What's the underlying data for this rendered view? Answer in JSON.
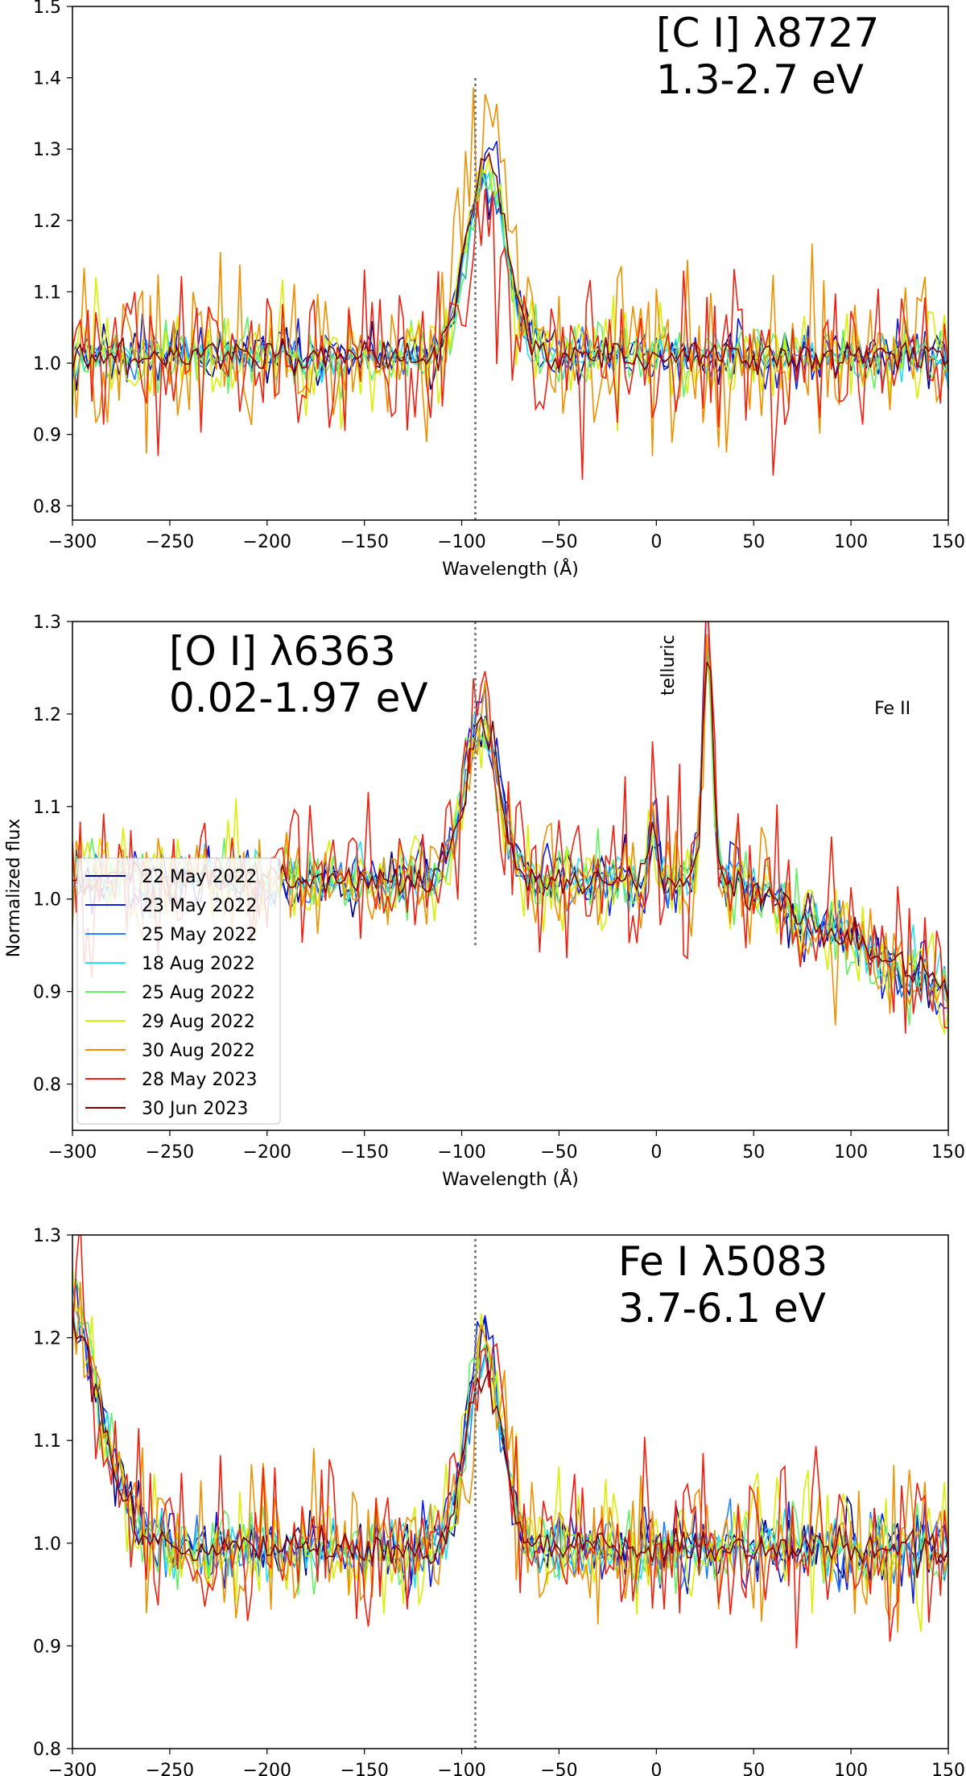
{
  "figure": {
    "shared_ylabel": "Normalized flux"
  },
  "legend": [
    {
      "label": "22 May 2022",
      "color": "#00008b"
    },
    {
      "label": "23 May 2022",
      "color": "#1020e0"
    },
    {
      "label": "25 May 2022",
      "color": "#2080ff"
    },
    {
      "label": "18 Aug 2022",
      "color": "#20e0f0"
    },
    {
      "label": "25 Aug 2022",
      "color": "#60f060"
    },
    {
      "label": "29 Aug 2022",
      "color": "#d8f000"
    },
    {
      "label": "30 Aug 2022",
      "color": "#f09000"
    },
    {
      "label": "28 May 2023",
      "color": "#f02010"
    },
    {
      "label": "30 Jun 2023",
      "color": "#800000"
    }
  ],
  "chart_data": [
    {
      "type": "line",
      "title_line1": "[C I] λ8727",
      "title_line2": "1.3-2.7 eV",
      "xlabel": "Wavelength (Å)",
      "xlim": [
        -300,
        150
      ],
      "ylim": [
        0.78,
        1.5
      ],
      "xticks": [
        -300,
        -250,
        -200,
        -150,
        -100,
        -50,
        0,
        50,
        100,
        150
      ],
      "yticks": [
        0.8,
        0.9,
        1.0,
        1.1,
        1.2,
        1.3,
        1.4,
        1.5
      ],
      "ytick_labels": [
        "0.8",
        "0.9",
        "1.0",
        "1.1",
        "1.2",
        "1.3",
        "1.4",
        "1.5"
      ],
      "vline": {
        "x": -93,
        "y_range": [
          0.78,
          1.4
        ]
      },
      "profile": {
        "baseline": 1.01,
        "features": [
          {
            "center": -88,
            "width": 10,
            "amp": 0.26
          }
        ],
        "slope_ref": 0,
        "slope": 0
      },
      "series_noise": [
        0.02,
        0.02,
        0.015,
        0.015,
        0.025,
        0.035,
        0.055,
        0.055,
        0.012
      ],
      "series_amp_scale": [
        1.0,
        1.05,
        0.95,
        0.95,
        1.0,
        1.05,
        1.3,
        0.7,
        1.05
      ],
      "annotations": []
    },
    {
      "type": "line",
      "title_line1": "[O I] λ6363",
      "title_line2": "0.02-1.97 eV",
      "xlabel": "Wavelength (Å)",
      "xlim": [
        -300,
        150
      ],
      "ylim": [
        0.75,
        1.3
      ],
      "xticks": [
        -300,
        -250,
        -200,
        -150,
        -100,
        -50,
        0,
        50,
        100,
        150
      ],
      "yticks": [
        0.8,
        0.9,
        1.0,
        1.1,
        1.2,
        1.3
      ],
      "ytick_labels": [
        "0.8",
        "0.9",
        "1.0",
        "1.1",
        "1.2",
        "1.3"
      ],
      "vline": {
        "x": -93,
        "y_range": [
          0.95,
          1.3
        ]
      },
      "profile": {
        "baseline": 1.02,
        "features": [
          {
            "center": -88,
            "width": 9,
            "amp": 0.17
          },
          {
            "center": 28,
            "width": 2.5,
            "amp": 0.26
          },
          {
            "center": 0,
            "width": 2,
            "amp": 0.06
          }
        ],
        "slope_ref": 40,
        "slope": -0.0011
      },
      "series_noise": [
        0.015,
        0.02,
        0.015,
        0.015,
        0.02,
        0.025,
        0.03,
        0.045,
        0.01
      ],
      "series_amp_scale": [
        1.0,
        1.1,
        1.0,
        1.0,
        1.0,
        1.0,
        1.0,
        1.1,
        1.0
      ],
      "annotations": [
        {
          "text": "telluric",
          "x": 9,
          "y": 1.22,
          "rotate": -90
        },
        {
          "text": "Fe II",
          "x": 112,
          "y": 1.2,
          "rotate": 0
        }
      ]
    },
    {
      "type": "line",
      "title_line1": "Fe I λ5083",
      "title_line2": "3.7-6.1 eV",
      "xlabel": "",
      "xlim": [
        -300,
        150
      ],
      "ylim": [
        0.8,
        1.3
      ],
      "xticks": [
        -300,
        -250,
        -200,
        -150,
        -100,
        -50,
        0,
        50,
        100,
        150
      ],
      "yticks": [
        0.8,
        0.9,
        1.0,
        1.1,
        1.2,
        1.3
      ],
      "ytick_labels": [
        "0.8",
        "0.9",
        "1.0",
        "1.1",
        "1.2",
        "1.3"
      ],
      "vline": {
        "x": -93,
        "y_range": [
          0.8,
          1.3
        ]
      },
      "profile": {
        "baseline": 0.995,
        "features": [
          {
            "center": -88,
            "width": 9,
            "amp": 0.19
          },
          {
            "center": -305,
            "width": 18,
            "amp": 0.25
          }
        ],
        "slope_ref": 0,
        "slope": 0
      },
      "series_noise": [
        0.015,
        0.02,
        0.015,
        0.015,
        0.02,
        0.03,
        0.035,
        0.04,
        0.01
      ],
      "series_amp_scale": [
        1.0,
        1.05,
        1.0,
        1.0,
        1.05,
        1.0,
        1.0,
        1.05,
        0.9
      ],
      "annotations": []
    }
  ]
}
